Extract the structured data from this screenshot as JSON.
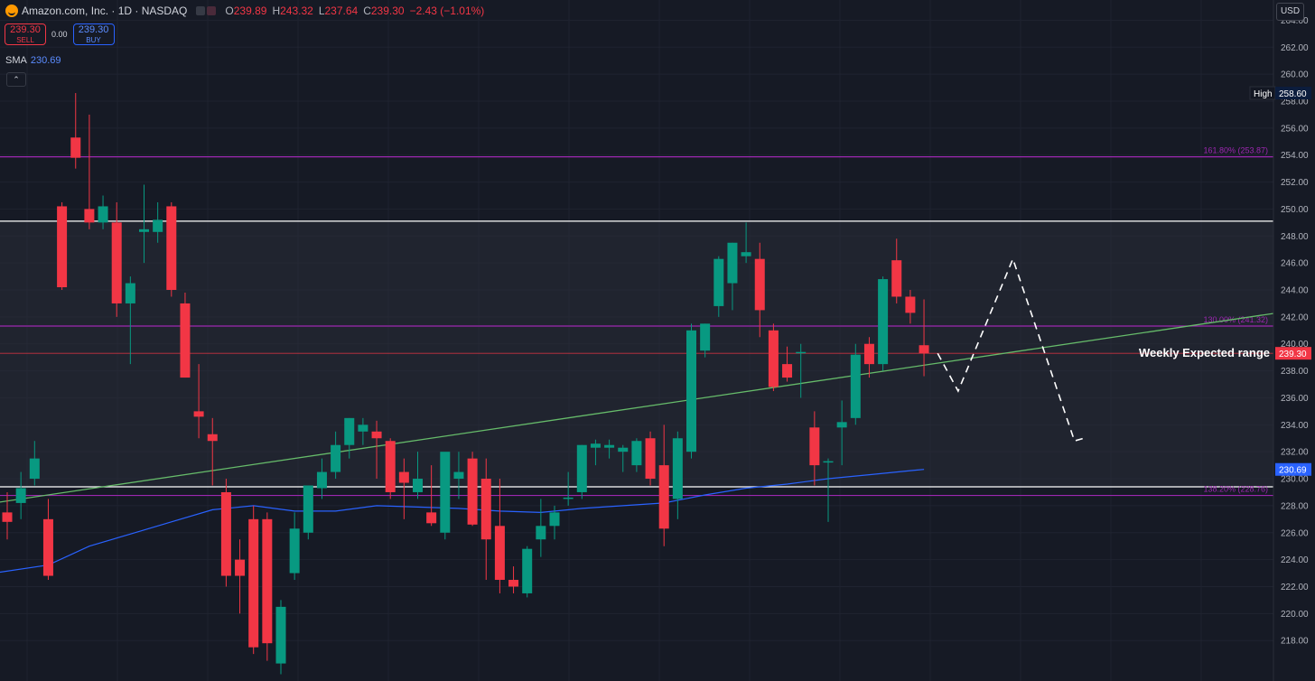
{
  "header": {
    "symbol_title": "Amazon.com, Inc. · 1D · NASDAQ",
    "ohlc": [
      {
        "label": "O",
        "value": "239.89"
      },
      {
        "label": "H",
        "value": "243.32"
      },
      {
        "label": "L",
        "value": "237.64"
      },
      {
        "label": "C",
        "value": "239.30"
      },
      {
        "label": "",
        "value": "−2.43 (−1.01%)"
      }
    ],
    "logo_icon": "amazon-logo-icon"
  },
  "trade": {
    "sell_price": "239.30",
    "sell_label": "SELL",
    "spread": "0.00",
    "buy_price": "239.30",
    "buy_label": "BUY"
  },
  "indicator": {
    "name": "SMA",
    "value": "230.69"
  },
  "currency": "USD",
  "colors": {
    "background": "#161a25",
    "up": "#089981",
    "down": "#f23645",
    "sma": "#2962ff",
    "fib": "#9c27b0",
    "trend": "#66bb6a",
    "range": "#ffffff"
  },
  "chart_data": {
    "type": "candlestick",
    "ylim": [
      215,
      265.5
    ],
    "ticks": [
      218,
      220,
      222,
      224,
      226,
      228,
      230,
      232,
      234,
      236,
      238,
      240,
      242,
      244,
      246,
      248,
      250,
      252,
      254,
      256,
      258,
      260,
      262,
      264
    ],
    "candles": [
      {
        "o": 227.5,
        "h": 229.0,
        "l": 225.5,
        "c": 226.8
      },
      {
        "o": 228.2,
        "h": 230.5,
        "l": 227.0,
        "c": 229.3
      },
      {
        "o": 230.0,
        "h": 232.8,
        "l": 229.5,
        "c": 231.5
      },
      {
        "o": 227.0,
        "h": 228.5,
        "l": 222.5,
        "c": 222.8
      },
      {
        "o": 250.2,
        "h": 250.5,
        "l": 244.0,
        "c": 244.2
      },
      {
        "o": 255.3,
        "h": 258.6,
        "l": 253.0,
        "c": 253.8
      },
      {
        "o": 250.0,
        "h": 257.0,
        "l": 248.5,
        "c": 249.0
      },
      {
        "o": 249.0,
        "h": 251.0,
        "l": 248.5,
        "c": 250.2
      },
      {
        "o": 249.0,
        "h": 250.5,
        "l": 242.0,
        "c": 243.0
      },
      {
        "o": 243.0,
        "h": 245.0,
        "l": 238.5,
        "c": 244.5
      },
      {
        "o": 248.3,
        "h": 251.8,
        "l": 246.0,
        "c": 248.5
      },
      {
        "o": 248.3,
        "h": 250.5,
        "l": 247.5,
        "c": 249.2
      },
      {
        "o": 250.2,
        "h": 250.5,
        "l": 243.5,
        "c": 244.0
      },
      {
        "o": 243.0,
        "h": 243.8,
        "l": 237.5,
        "c": 237.5
      },
      {
        "o": 235.0,
        "h": 238.5,
        "l": 233.0,
        "c": 234.6
      },
      {
        "o": 233.3,
        "h": 234.5,
        "l": 229.5,
        "c": 232.8
      },
      {
        "o": 229.0,
        "h": 230.0,
        "l": 222.0,
        "c": 222.8
      },
      {
        "o": 224.0,
        "h": 225.5,
        "l": 220.0,
        "c": 222.8
      },
      {
        "o": 227.0,
        "h": 228.0,
        "l": 217.0,
        "c": 217.5
      },
      {
        "o": 227.0,
        "h": 227.5,
        "l": 216.5,
        "c": 217.8
      },
      {
        "o": 216.3,
        "h": 221.0,
        "l": 215.5,
        "c": 220.5
      },
      {
        "o": 223.0,
        "h": 227.5,
        "l": 222.5,
        "c": 226.3
      },
      {
        "o": 226.0,
        "h": 229.5,
        "l": 225.5,
        "c": 229.5
      },
      {
        "o": 229.3,
        "h": 231.5,
        "l": 228.5,
        "c": 230.5
      },
      {
        "o": 230.5,
        "h": 233.5,
        "l": 230.0,
        "c": 232.5
      },
      {
        "o": 232.5,
        "h": 234.5,
        "l": 231.5,
        "c": 234.5
      },
      {
        "o": 233.5,
        "h": 234.5,
        "l": 232.5,
        "c": 234.0
      },
      {
        "o": 233.5,
        "h": 234.3,
        "l": 230.0,
        "c": 233.0
      },
      {
        "o": 232.8,
        "h": 233.0,
        "l": 228.5,
        "c": 229.0
      },
      {
        "o": 230.5,
        "h": 231.5,
        "l": 227.0,
        "c": 229.7
      },
      {
        "o": 229.0,
        "h": 232.0,
        "l": 228.5,
        "c": 230.0
      },
      {
        "o": 227.5,
        "h": 231.0,
        "l": 226.5,
        "c": 226.7
      },
      {
        "o": 226.0,
        "h": 231.5,
        "l": 225.5,
        "c": 232.0
      },
      {
        "o": 230.0,
        "h": 232.0,
        "l": 228.5,
        "c": 230.5
      },
      {
        "o": 231.5,
        "h": 232.0,
        "l": 226.5,
        "c": 226.6
      },
      {
        "o": 230.0,
        "h": 231.5,
        "l": 222.5,
        "c": 225.5
      },
      {
        "o": 226.5,
        "h": 230.0,
        "l": 221.5,
        "c": 222.5
      },
      {
        "o": 222.5,
        "h": 223.5,
        "l": 221.5,
        "c": 222.0
      },
      {
        "o": 221.5,
        "h": 225.0,
        "l": 221.2,
        "c": 224.8
      },
      {
        "o": 225.5,
        "h": 228.5,
        "l": 224.2,
        "c": 226.5
      },
      {
        "o": 226.5,
        "h": 228.0,
        "l": 225.5,
        "c": 227.5
      },
      {
        "o": 228.5,
        "h": 230.5,
        "l": 228.0,
        "c": 228.6
      },
      {
        "o": 229.0,
        "h": 232.5,
        "l": 228.5,
        "c": 232.5
      },
      {
        "o": 232.3,
        "h": 232.9,
        "l": 231.0,
        "c": 232.6
      },
      {
        "o": 232.3,
        "h": 232.9,
        "l": 231.5,
        "c": 232.5
      },
      {
        "o": 232.0,
        "h": 232.5,
        "l": 230.5,
        "c": 232.3
      },
      {
        "o": 231.0,
        "h": 233.0,
        "l": 230.5,
        "c": 232.8
      },
      {
        "o": 233.0,
        "h": 233.5,
        "l": 229.5,
        "c": 230.0
      },
      {
        "o": 231.0,
        "h": 234.0,
        "l": 225.0,
        "c": 226.3
      },
      {
        "o": 228.5,
        "h": 233.5,
        "l": 227.0,
        "c": 233.0
      },
      {
        "o": 232.0,
        "h": 241.5,
        "l": 231.5,
        "c": 241.0
      },
      {
        "o": 239.5,
        "h": 241.5,
        "l": 239.0,
        "c": 241.5
      },
      {
        "o": 242.8,
        "h": 246.5,
        "l": 242.0,
        "c": 246.3
      },
      {
        "o": 244.5,
        "h": 247.5,
        "l": 242.5,
        "c": 247.5
      },
      {
        "o": 246.5,
        "h": 249.0,
        "l": 246.0,
        "c": 246.8
      },
      {
        "o": 246.3,
        "h": 247.5,
        "l": 240.5,
        "c": 242.5
      },
      {
        "o": 241.0,
        "h": 241.5,
        "l": 236.5,
        "c": 236.8
      },
      {
        "o": 238.5,
        "h": 239.8,
        "l": 237.2,
        "c": 237.5
      },
      {
        "o": 239.3,
        "h": 240.0,
        "l": 236.0,
        "c": 239.4
      },
      {
        "o": 233.8,
        "h": 235.0,
        "l": 229.5,
        "c": 231.0
      },
      {
        "o": 231.2,
        "h": 231.5,
        "l": 226.8,
        "c": 231.3
      },
      {
        "o": 233.8,
        "h": 235.8,
        "l": 231.0,
        "c": 234.2
      },
      {
        "o": 234.5,
        "h": 240.0,
        "l": 234.0,
        "c": 239.2
      },
      {
        "o": 240.0,
        "h": 240.5,
        "l": 237.5,
        "c": 238.5
      },
      {
        "o": 238.5,
        "h": 245.0,
        "l": 238.0,
        "c": 244.8
      },
      {
        "o": 246.2,
        "h": 247.8,
        "l": 243.0,
        "c": 243.5
      },
      {
        "o": 243.5,
        "h": 244.0,
        "l": 241.5,
        "c": 242.3
      },
      {
        "o": 239.9,
        "h": 243.3,
        "l": 237.6,
        "c": 239.3
      }
    ],
    "sma": [
      {
        "i": -1,
        "v": 223.0
      },
      {
        "i": 3,
        "v": 223.6
      },
      {
        "i": 6,
        "v": 225.0
      },
      {
        "i": 9,
        "v": 225.9
      },
      {
        "i": 12,
        "v": 226.8
      },
      {
        "i": 15,
        "v": 227.7
      },
      {
        "i": 18,
        "v": 228.0
      },
      {
        "i": 21,
        "v": 227.6
      },
      {
        "i": 24,
        "v": 227.6
      },
      {
        "i": 27,
        "v": 228.0
      },
      {
        "i": 30,
        "v": 227.9
      },
      {
        "i": 33,
        "v": 227.8
      },
      {
        "i": 36,
        "v": 227.6
      },
      {
        "i": 39,
        "v": 227.5
      },
      {
        "i": 42,
        "v": 227.8
      },
      {
        "i": 45,
        "v": 228.0
      },
      {
        "i": 48,
        "v": 228.2
      },
      {
        "i": 51,
        "v": 228.8
      },
      {
        "i": 54,
        "v": 229.3
      },
      {
        "i": 57,
        "v": 229.6
      },
      {
        "i": 60,
        "v": 230.0
      },
      {
        "i": 63,
        "v": 230.3
      },
      {
        "i": 66,
        "v": 230.6
      },
      {
        "i": 67,
        "v": 230.69
      }
    ],
    "levels": [
      {
        "name": "fib-161",
        "price": 253.87,
        "color": "#9c27b0",
        "label": "161.80% (253.87)"
      },
      {
        "name": "range-top",
        "price": 249.1,
        "color": "#ffffff",
        "label": ""
      },
      {
        "name": "fib-130",
        "price": 241.32,
        "color": "#9c27b0",
        "label": "130.00% (241.32)"
      },
      {
        "name": "range-bottom",
        "price": 229.4,
        "color": "#ffffff",
        "label": ""
      },
      {
        "name": "fib-138",
        "price": 228.76,
        "color": "#9c27b0",
        "label": "138.20% (228.76)"
      }
    ],
    "close_line": 239.3,
    "trendline": {
      "from": {
        "i": -1,
        "v": 228.2
      },
      "to": {
        "i": 95.5,
        "v": 242.7
      }
    },
    "projection": [
      {
        "i": 68.0,
        "v": 239.3
      },
      {
        "i": 69.5,
        "v": 236.5
      },
      {
        "i": 73.5,
        "v": 246.3
      },
      {
        "i": 78.0,
        "v": 232.8
      },
      {
        "i": 78.7,
        "v": 233.0
      }
    ],
    "annotation": "Weekly Expected range",
    "axis_tags": {
      "high_label": "High",
      "high_value": "258.60",
      "close_value": "239.30",
      "sma_value": "230.69"
    }
  }
}
